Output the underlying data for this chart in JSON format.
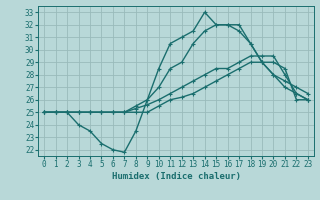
{
  "xlabel": "Humidex (Indice chaleur)",
  "bg_color": "#b8d8d8",
  "line_color": "#1a6e6e",
  "grid_color": "#99bbbb",
  "xlim": [
    -0.5,
    23.5
  ],
  "ylim": [
    21.5,
    33.5
  ],
  "xticks": [
    0,
    1,
    2,
    3,
    4,
    5,
    6,
    7,
    8,
    9,
    10,
    11,
    12,
    13,
    14,
    15,
    16,
    17,
    18,
    19,
    20,
    21,
    22,
    23
  ],
  "yticks": [
    22,
    23,
    24,
    25,
    26,
    27,
    28,
    29,
    30,
    31,
    32,
    33
  ],
  "line1_x": [
    0,
    1,
    2,
    3,
    4,
    5,
    6,
    7,
    8,
    9,
    10,
    11,
    12,
    13,
    14,
    15,
    16,
    17,
    18,
    19,
    20,
    21,
    22,
    23
  ],
  "line1_y": [
    25,
    25,
    25,
    25,
    25,
    25,
    25,
    25,
    25,
    25,
    25.5,
    26,
    26.2,
    26.5,
    27,
    27.5,
    28,
    28.5,
    29,
    29,
    29,
    28.5,
    26,
    26
  ],
  "line2_x": [
    0,
    1,
    2,
    3,
    4,
    5,
    6,
    7,
    8,
    9,
    10,
    11,
    12,
    13,
    14,
    15,
    16,
    17,
    18,
    19,
    20,
    21,
    22,
    23
  ],
  "line2_y": [
    25,
    25,
    25,
    24,
    23.5,
    22.5,
    22,
    21.8,
    23.5,
    26,
    28.5,
    30.5,
    31,
    31.5,
    33,
    32,
    32,
    32,
    30.5,
    29,
    28,
    27,
    26.5,
    26
  ],
  "line3_x": [
    0,
    1,
    2,
    3,
    4,
    5,
    6,
    7,
    8,
    9,
    10,
    11,
    12,
    13,
    14,
    15,
    16,
    17,
    18,
    19,
    20,
    21,
    22,
    23
  ],
  "line3_y": [
    25,
    25,
    25,
    25,
    25,
    25,
    25,
    25,
    25.5,
    26,
    27,
    28.5,
    29,
    30.5,
    31.5,
    32,
    32,
    31.5,
    30.5,
    29,
    28,
    27.5,
    27,
    26.5
  ],
  "line4_x": [
    0,
    1,
    2,
    3,
    4,
    5,
    6,
    7,
    8,
    9,
    10,
    11,
    12,
    13,
    14,
    15,
    16,
    17,
    18,
    19,
    20,
    21,
    22,
    23
  ],
  "line4_y": [
    25,
    25,
    25,
    25,
    25,
    25,
    25,
    25,
    25.3,
    25.6,
    26,
    26.5,
    27,
    27.5,
    28,
    28.5,
    28.5,
    29,
    29.5,
    29.5,
    29.5,
    28,
    26.5,
    26
  ]
}
